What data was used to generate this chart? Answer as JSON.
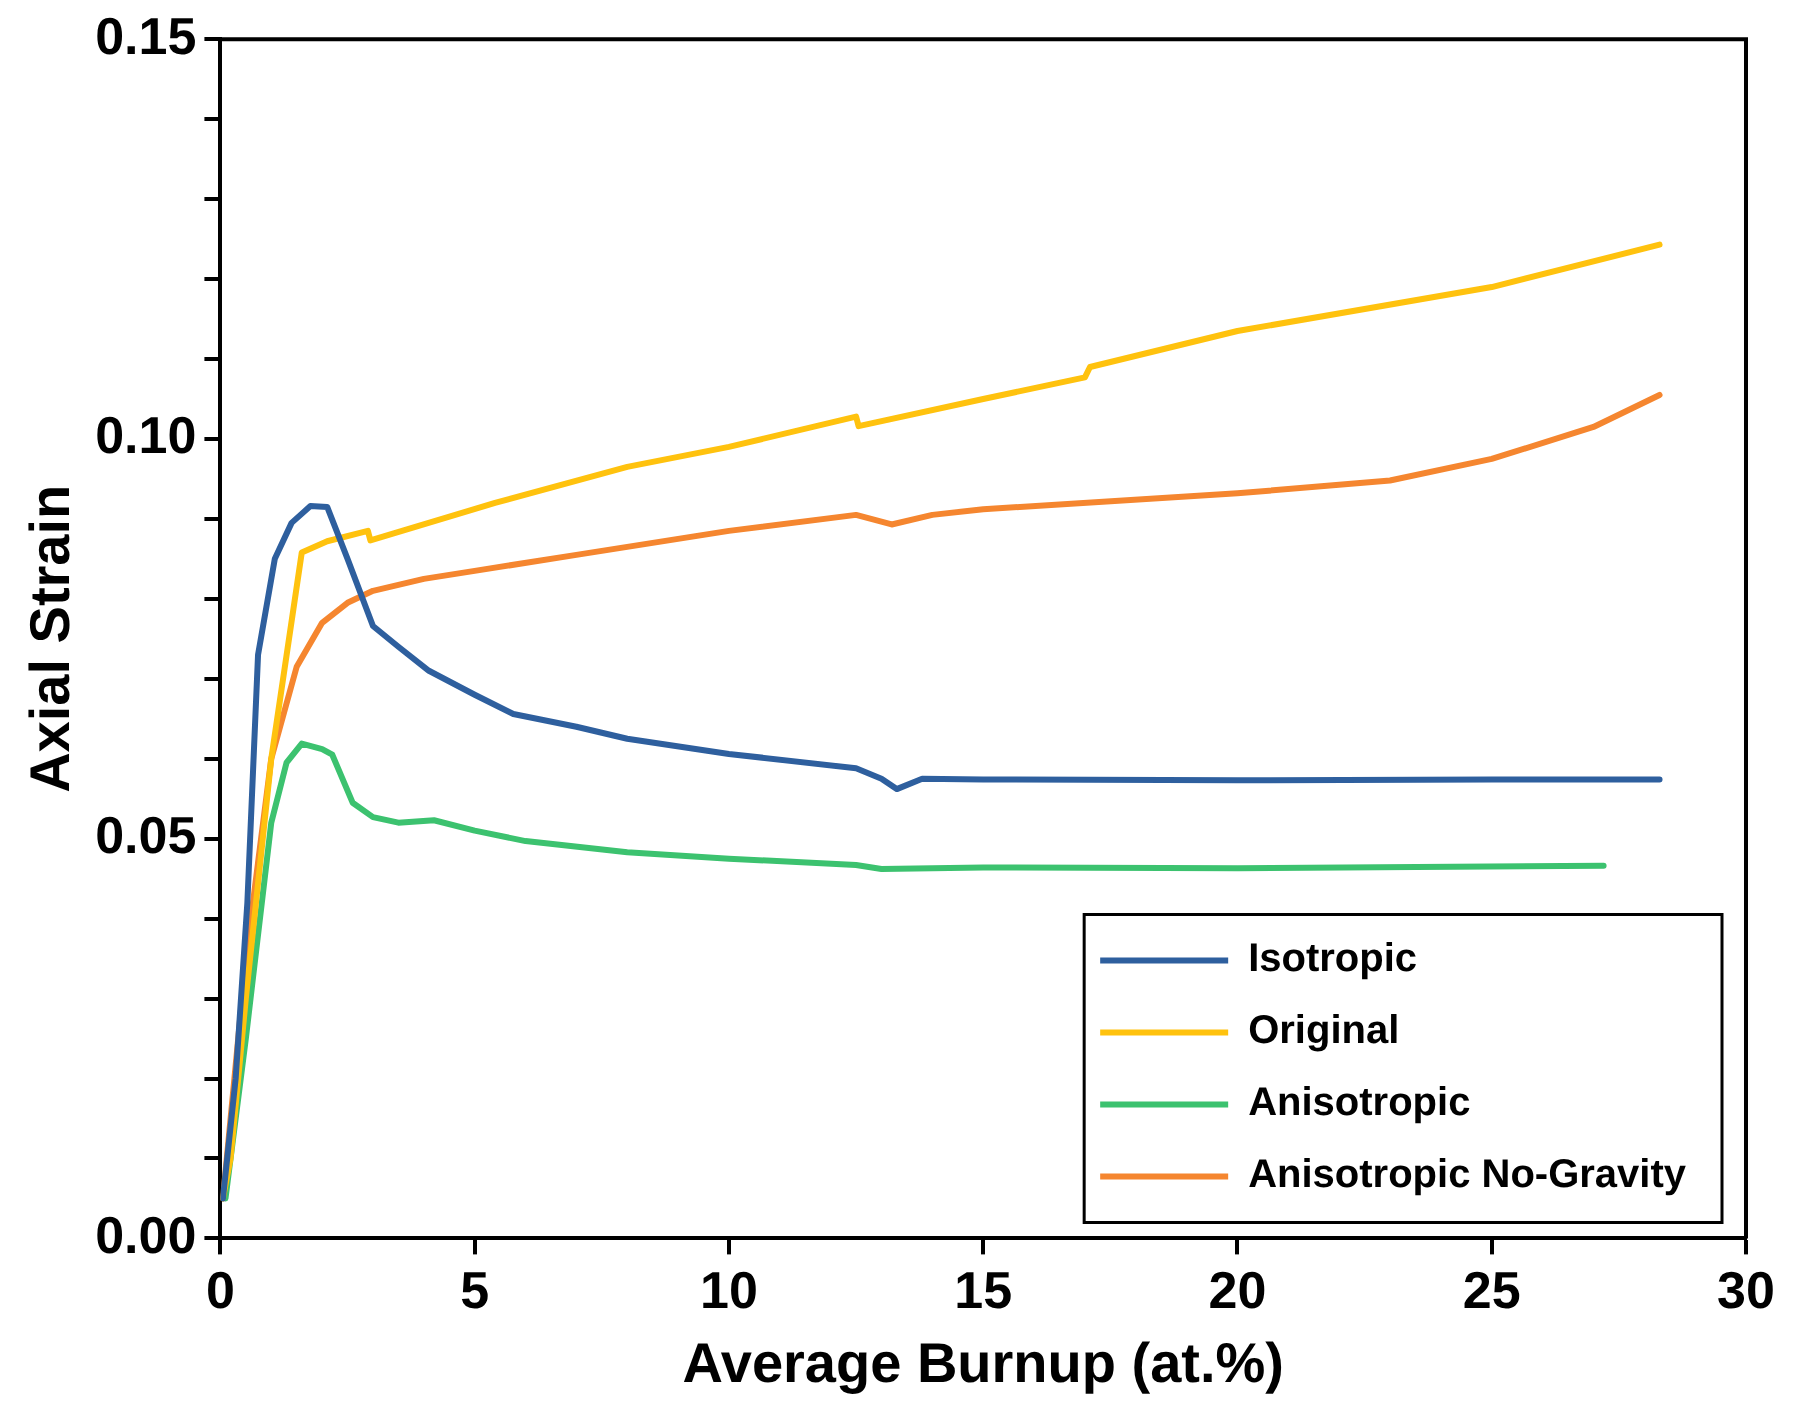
{
  "chart_data": {
    "type": "line",
    "xlabel": "Average Burnup (at.%)",
    "ylabel": "Axial Strain",
    "xlim": [
      0,
      30
    ],
    "xticks": [
      0,
      5,
      10,
      15,
      20,
      25,
      30
    ],
    "ylim": [
      0,
      0.15
    ],
    "yticks": [
      {
        "value": 0,
        "label": "0.00"
      },
      {
        "value": 0.01,
        "label": null
      },
      {
        "value": 0.02,
        "label": null
      },
      {
        "value": 0.03,
        "label": null
      },
      {
        "value": 0.04,
        "label": null
      },
      {
        "value": 0.05,
        "label": "0.05"
      },
      {
        "value": 0.06,
        "label": null
      },
      {
        "value": 0.07,
        "label": null
      },
      {
        "value": 0.08,
        "label": null
      },
      {
        "value": 0.09,
        "label": null
      },
      {
        "value": 0.1,
        "label": "0.10"
      },
      {
        "value": 0.11,
        "label": null
      },
      {
        "value": 0.12,
        "label": null
      },
      {
        "value": 0.13,
        "label": null
      },
      {
        "value": 0.14,
        "label": null
      },
      {
        "value": 0.15,
        "label": "0.15"
      }
    ],
    "grid": false,
    "legend": "bottom right",
    "marker": "none",
    "line_style": "solid",
    "series": [
      {
        "name": "Isotropic",
        "color": "#2e5f9e",
        "x": [
          0.05,
          0.3,
          0.53,
          0.74,
          1.07,
          1.4,
          1.77,
          2.1,
          2.5,
          3.0,
          3.5,
          4.1,
          5.0,
          5.76,
          7,
          8,
          10,
          12.5,
          13.0,
          13.3,
          13.8,
          15,
          20,
          25,
          28.3
        ],
        "values": [
          0.005,
          0.02,
          0.042,
          0.073,
          0.085,
          0.0895,
          0.0916,
          0.0915,
          0.085,
          0.0766,
          0.074,
          0.071,
          0.068,
          0.0656,
          0.064,
          0.0625,
          0.0606,
          0.0588,
          0.0575,
          0.0562,
          0.0575,
          0.0574,
          0.0573,
          0.0574,
          0.0574
        ]
      },
      {
        "name": "Original",
        "color": "#ffc20e",
        "x": [
          0.05,
          0.2,
          0.5,
          1.0,
          1.6,
          2.1,
          2.9,
          2.95,
          5.4,
          8,
          10,
          12.5,
          12.55,
          15,
          17,
          17.1,
          20,
          25,
          28.3
        ],
        "values": [
          0.005,
          0.01,
          0.03,
          0.06,
          0.0858,
          0.0872,
          0.0885,
          0.0873,
          0.092,
          0.0965,
          0.099,
          0.1028,
          0.1016,
          0.105,
          0.1077,
          0.109,
          0.1135,
          0.119,
          0.1243
        ]
      },
      {
        "name": "Anisotropic",
        "color": "#3cc26f",
        "x": [
          0.1,
          0.5,
          1.0,
          1.3,
          1.6,
          2.0,
          2.2,
          2.6,
          3.0,
          3.5,
          4.2,
          5,
          6,
          8,
          10,
          12.5,
          13,
          15,
          20,
          27.2
        ],
        "values": [
          0.005,
          0.025,
          0.052,
          0.0595,
          0.0619,
          0.0612,
          0.0605,
          0.0545,
          0.0527,
          0.052,
          0.0523,
          0.051,
          0.0497,
          0.0483,
          0.0475,
          0.0467,
          0.0462,
          0.0464,
          0.0463,
          0.0466
        ]
      },
      {
        "name": "Anisotropic No-Gravity",
        "color": "#f5862f",
        "x": [
          0.05,
          0.5,
          1.0,
          1.5,
          2.0,
          2.5,
          3.0,
          4,
          5,
          7,
          10,
          12.5,
          13.2,
          14,
          15,
          20,
          23,
          25,
          27,
          28.3
        ],
        "values": [
          0.005,
          0.035,
          0.06,
          0.0715,
          0.077,
          0.0795,
          0.081,
          0.0825,
          0.0835,
          0.0855,
          0.0885,
          0.0905,
          0.0893,
          0.0905,
          0.0912,
          0.0932,
          0.0948,
          0.0975,
          0.1015,
          0.1055
        ]
      }
    ]
  }
}
